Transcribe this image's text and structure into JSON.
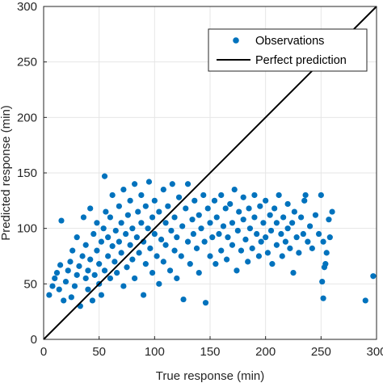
{
  "chart_data": {
    "type": "scatter",
    "title": "",
    "xlabel": "True response (min)",
    "ylabel": "Predicted response (min)",
    "xlim": [
      0,
      300
    ],
    "ylim": [
      0,
      300
    ],
    "xticks": [
      "0",
      "50",
      "100",
      "150",
      "200",
      "250",
      "300"
    ],
    "yticks": [
      "0",
      "50",
      "100",
      "150",
      "200",
      "250",
      "300"
    ],
    "grid": true,
    "legend_position": "top-right",
    "legend": [
      {
        "label": "Observations",
        "marker": "dot"
      },
      {
        "label": "Perfect prediction",
        "marker": "line"
      }
    ],
    "colors": {
      "observations": "#0072BD",
      "perfect_line": "#000000",
      "grid": "#e6e6e6"
    },
    "perfect_line": {
      "x": [
        0,
        300
      ],
      "y": [
        0,
        300
      ]
    },
    "series": [
      {
        "name": "Observations",
        "points": [
          [
            5,
            40
          ],
          [
            8,
            48
          ],
          [
            10,
            55
          ],
          [
            12,
            60
          ],
          [
            14,
            45
          ],
          [
            15,
            67
          ],
          [
            16,
            107
          ],
          [
            18,
            35
          ],
          [
            20,
            52
          ],
          [
            22,
            62
          ],
          [
            24,
            70
          ],
          [
            25,
            38
          ],
          [
            26,
            80
          ],
          [
            28,
            48
          ],
          [
            30,
            58
          ],
          [
            30,
            92
          ],
          [
            32,
            66
          ],
          [
            33,
            30
          ],
          [
            35,
            75
          ],
          [
            36,
            110
          ],
          [
            38,
            55
          ],
          [
            38,
            85
          ],
          [
            40,
            45
          ],
          [
            40,
            62
          ],
          [
            42,
            72
          ],
          [
            42,
            118
          ],
          [
            44,
            35
          ],
          [
            45,
            95
          ],
          [
            46,
            58
          ],
          [
            48,
            80
          ],
          [
            48,
            105
          ],
          [
            50,
            68
          ],
          [
            50,
            50
          ],
          [
            52,
            88
          ],
          [
            52,
            40
          ],
          [
            54,
            100
          ],
          [
            55,
            147
          ],
          [
            55,
            62
          ],
          [
            56,
            115
          ],
          [
            58,
            75
          ],
          [
            58,
            92
          ],
          [
            60,
            55
          ],
          [
            60,
            110
          ],
          [
            62,
            84
          ],
          [
            62,
            130
          ],
          [
            64,
            70
          ],
          [
            65,
            98
          ],
          [
            66,
            60
          ],
          [
            68,
            120
          ],
          [
            68,
            88
          ],
          [
            70,
            78
          ],
          [
            70,
            105
          ],
          [
            72,
            135
          ],
          [
            72,
            48
          ],
          [
            74,
            95
          ],
          [
            75,
            65
          ],
          [
            76,
            112
          ],
          [
            78,
            85
          ],
          [
            78,
            125
          ],
          [
            80,
            72
          ],
          [
            80,
            100
          ],
          [
            82,
            140
          ],
          [
            82,
            55
          ],
          [
            84,
            92
          ],
          [
            85,
            115
          ],
          [
            86,
            78
          ],
          [
            88,
            105
          ],
          [
            88,
            130
          ],
          [
            90,
            40
          ],
          [
            90,
            88
          ],
          [
            92,
            120
          ],
          [
            92,
            68
          ],
          [
            94,
            100
          ],
          [
            95,
            142
          ],
          [
            96,
            82
          ],
          [
            98,
            110
          ],
          [
            98,
            60
          ],
          [
            100,
            95
          ],
          [
            100,
            125
          ],
          [
            102,
            75
          ],
          [
            104,
            115
          ],
          [
            104,
            50
          ],
          [
            106,
            90
          ],
          [
            108,
            135
          ],
          [
            108,
            70
          ],
          [
            110,
            105
          ],
          [
            110,
            85
          ],
          [
            112,
            120
          ],
          [
            114,
            62
          ],
          [
            115,
            98
          ],
          [
            116,
            140
          ],
          [
            118,
            80
          ],
          [
            118,
            110
          ],
          [
            120,
            92
          ],
          [
            120,
            55
          ],
          [
            122,
            128
          ],
          [
            124,
            75
          ],
          [
            125,
            102
          ],
          [
            126,
            36
          ],
          [
            128,
            118
          ],
          [
            130,
            88
          ],
          [
            130,
            140
          ],
          [
            132,
            68
          ],
          [
            134,
            108
          ],
          [
            135,
            95
          ],
          [
            136,
            125
          ],
          [
            138,
            82
          ],
          [
            140,
            112
          ],
          [
            140,
            60
          ],
          [
            142,
            100
          ],
          [
            144,
            130
          ],
          [
            145,
            88
          ],
          [
            146,
            33
          ],
          [
            148,
            118
          ],
          [
            150,
            75
          ],
          [
            150,
            105
          ],
          [
            152,
            92
          ],
          [
            154,
            125
          ],
          [
            155,
            68
          ],
          [
            156,
            110
          ],
          [
            158,
            95
          ],
          [
            160,
            130
          ],
          [
            160,
            80
          ],
          [
            162,
            102
          ],
          [
            164,
            118
          ],
          [
            165,
            72
          ],
          [
            166,
            92
          ],
          [
            168,
            122
          ],
          [
            170,
            85
          ],
          [
            170,
            105
          ],
          [
            172,
            135
          ],
          [
            174,
            62
          ],
          [
            175,
            98
          ],
          [
            176,
            115
          ],
          [
            178,
            80
          ],
          [
            180,
            108
          ],
          [
            180,
            128
          ],
          [
            182,
            90
          ],
          [
            184,
            70
          ],
          [
            185,
            118
          ],
          [
            186,
            100
          ],
          [
            188,
            82
          ],
          [
            190,
            110
          ],
          [
            190,
            130
          ],
          [
            192,
            95
          ],
          [
            194,
            75
          ],
          [
            195,
            120
          ],
          [
            196,
            88
          ],
          [
            198,
            105
          ],
          [
            200,
            92
          ],
          [
            200,
            125
          ],
          [
            202,
            78
          ],
          [
            204,
            112
          ],
          [
            205,
            98
          ],
          [
            206,
            68
          ],
          [
            208,
            118
          ],
          [
            210,
            85
          ],
          [
            210,
            105
          ],
          [
            212,
            130
          ],
          [
            214,
            95
          ],
          [
            215,
            75
          ],
          [
            216,
            110
          ],
          [
            218,
            88
          ],
          [
            220,
            100
          ],
          [
            220,
            122
          ],
          [
            222,
            82
          ],
          [
            224,
            105
          ],
          [
            225,
            60
          ],
          [
            226,
            115
          ],
          [
            228,
            92
          ],
          [
            230,
            78
          ],
          [
            232,
            110
          ],
          [
            234,
            95
          ],
          [
            235,
            125
          ],
          [
            236,
            130
          ],
          [
            238,
            88
          ],
          [
            240,
            102
          ],
          [
            242,
            82
          ],
          [
            245,
            112
          ],
          [
            248,
            95
          ],
          [
            250,
            130
          ],
          [
            251,
            52
          ],
          [
            252,
            88
          ],
          [
            252,
            37
          ],
          [
            253,
            65
          ],
          [
            254,
            68
          ],
          [
            255,
            78
          ],
          [
            257,
            108
          ],
          [
            258,
            92
          ],
          [
            260,
            115
          ],
          [
            290,
            35
          ],
          [
            297,
            57
          ]
        ]
      }
    ]
  }
}
